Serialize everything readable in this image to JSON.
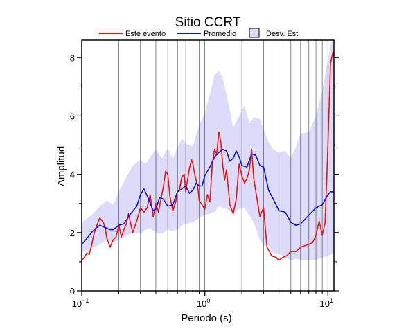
{
  "chart_data": {
    "type": "line",
    "title": "Sitio CCRT",
    "xlabel": "Periodo (s)",
    "ylabel": "Amplitud",
    "x_scale": "log",
    "xlim": [
      0.1,
      11.2
    ],
    "ylim": [
      0,
      8.6
    ],
    "grid": true,
    "legend_position": "top",
    "x_ticks": [
      {
        "value": 0.1,
        "base": "10",
        "exp": "−1"
      },
      {
        "value": 1,
        "base": "10",
        "exp": "0"
      },
      {
        "value": 10,
        "base": "10",
        "exp": "1"
      }
    ],
    "y_ticks": [
      {
        "value": 0,
        "label": "0"
      },
      {
        "value": 2,
        "label": "2"
      },
      {
        "value": 4,
        "label": "4"
      },
      {
        "value": 6,
        "label": "6"
      },
      {
        "value": 8,
        "label": "8"
      }
    ],
    "series": [
      {
        "name": "Este evento",
        "color": "#ee1111",
        "x": [
          0.1,
          0.105,
          0.11,
          0.115,
          0.12,
          0.125,
          0.13,
          0.14,
          0.15,
          0.155,
          0.16,
          0.17,
          0.18,
          0.19,
          0.2,
          0.21,
          0.22,
          0.23,
          0.24,
          0.25,
          0.26,
          0.28,
          0.3,
          0.32,
          0.34,
          0.36,
          0.38,
          0.4,
          0.42,
          0.44,
          0.46,
          0.48,
          0.5,
          0.52,
          0.55,
          0.58,
          0.6,
          0.62,
          0.65,
          0.68,
          0.7,
          0.72,
          0.75,
          0.78,
          0.8,
          0.82,
          0.85,
          0.88,
          0.9,
          0.95,
          1.0,
          1.05,
          1.1,
          1.15,
          1.2,
          1.25,
          1.3,
          1.35,
          1.4,
          1.45,
          1.5,
          1.6,
          1.7,
          1.8,
          1.9,
          2.0,
          2.1,
          2.2,
          2.3,
          2.4,
          2.5,
          2.6,
          2.8,
          3.0,
          3.2,
          3.5,
          3.8,
          4.0,
          4.3,
          4.6,
          5.0,
          5.5,
          6.0,
          6.5,
          7.0,
          7.5,
          8.0,
          8.5,
          9.0,
          9.5,
          10.0,
          10.5,
          11.0,
          11.2
        ],
        "y": [
          1.05,
          1.15,
          1.3,
          1.25,
          1.55,
          1.9,
          2.15,
          2.5,
          2.35,
          2.15,
          1.8,
          1.5,
          1.75,
          1.85,
          2.25,
          1.85,
          2.1,
          2.3,
          2.65,
          2.3,
          2.0,
          2.4,
          2.85,
          2.7,
          2.85,
          3.3,
          2.55,
          3.0,
          2.7,
          3.15,
          3.55,
          4.1,
          4.0,
          3.25,
          2.75,
          3.05,
          3.4,
          3.45,
          3.9,
          4.0,
          3.4,
          3.75,
          4.2,
          4.5,
          4.35,
          4.1,
          3.8,
          3.5,
          3.1,
          2.95,
          2.8,
          3.3,
          3.05,
          4.35,
          4.85,
          4.7,
          5.45,
          5.1,
          4.3,
          3.8,
          4.15,
          2.95,
          2.65,
          3.15,
          4.35,
          3.95,
          3.7,
          3.85,
          4.15,
          4.85,
          3.85,
          3.4,
          2.55,
          2.85,
          1.5,
          1.2,
          1.15,
          1.05,
          1.15,
          1.2,
          1.35,
          1.35,
          1.5,
          1.55,
          1.6,
          1.65,
          1.9,
          2.4,
          1.9,
          2.35,
          5.0,
          7.8,
          8.2,
          8.05
        ]
      },
      {
        "name": "Promedio",
        "color": "#1010dd",
        "x": [
          0.1,
          0.11,
          0.12,
          0.13,
          0.14,
          0.15,
          0.16,
          0.17,
          0.18,
          0.2,
          0.22,
          0.25,
          0.28,
          0.3,
          0.32,
          0.35,
          0.38,
          0.4,
          0.43,
          0.46,
          0.5,
          0.55,
          0.6,
          0.65,
          0.7,
          0.75,
          0.8,
          0.85,
          0.9,
          0.95,
          1.0,
          1.1,
          1.2,
          1.3,
          1.4,
          1.5,
          1.6,
          1.7,
          1.8,
          1.9,
          2.0,
          2.2,
          2.4,
          2.6,
          2.8,
          3.0,
          3.3,
          3.6,
          4.0,
          4.5,
          5.0,
          5.5,
          6.0,
          6.5,
          7.0,
          8.0,
          9.0,
          10.0,
          10.5,
          11.0,
          11.2
        ],
        "y": [
          1.6,
          1.8,
          2.0,
          2.15,
          2.25,
          2.2,
          2.15,
          2.1,
          2.1,
          2.25,
          2.3,
          2.65,
          2.9,
          3.3,
          3.5,
          3.15,
          2.75,
          2.8,
          3.2,
          3.15,
          2.9,
          2.95,
          3.4,
          3.5,
          3.6,
          3.35,
          3.45,
          3.7,
          3.6,
          3.6,
          3.95,
          4.25,
          4.6,
          4.75,
          4.85,
          4.8,
          4.45,
          4.55,
          4.8,
          4.6,
          4.3,
          4.25,
          4.7,
          4.65,
          4.3,
          4.25,
          3.45,
          3.15,
          2.75,
          2.7,
          2.35,
          2.25,
          2.3,
          2.45,
          2.6,
          2.85,
          2.95,
          3.3,
          3.4,
          3.4,
          3.4
        ]
      }
    ],
    "std_band": {
      "name": "Desv. Est.",
      "color": "#dcdcfa",
      "x": [
        0.1,
        0.12,
        0.14,
        0.16,
        0.18,
        0.2,
        0.23,
        0.26,
        0.3,
        0.33,
        0.36,
        0.4,
        0.45,
        0.5,
        0.55,
        0.6,
        0.65,
        0.7,
        0.8,
        0.9,
        1.0,
        1.1,
        1.2,
        1.3,
        1.4,
        1.5,
        1.7,
        1.9,
        2.1,
        2.3,
        2.5,
        2.8,
        3.0,
        3.3,
        3.6,
        4.0,
        4.5,
        5.0,
        5.5,
        6.0,
        7.0,
        8.0,
        9.0,
        10.0,
        10.5,
        11.0,
        11.2
      ],
      "upper": [
        2.35,
        2.6,
        2.9,
        3.1,
        2.95,
        3.4,
        3.9,
        4.3,
        4.5,
        4.35,
        4.6,
        4.85,
        4.55,
        4.9,
        4.55,
        4.9,
        5.25,
        5.05,
        4.95,
        5.7,
        6.1,
        6.75,
        7.4,
        7.55,
        7.3,
        6.75,
        5.6,
        6.0,
        6.35,
        5.75,
        5.95,
        5.9,
        5.55,
        5.1,
        4.85,
        4.75,
        4.8,
        4.55,
        4.95,
        5.4,
        5.45,
        6.0,
        6.85,
        7.9,
        8.45,
        8.6,
        8.6
      ],
      "lower": [
        1.3,
        1.45,
        1.6,
        1.75,
        1.65,
        1.75,
        1.85,
        2.0,
        1.95,
        2.1,
        2.15,
        2.0,
        1.95,
        2.1,
        2.05,
        2.1,
        2.25,
        2.3,
        2.35,
        2.5,
        2.6,
        2.65,
        2.7,
        2.9,
        2.85,
        2.85,
        2.65,
        2.8,
        2.85,
        2.6,
        2.35,
        1.75,
        1.55,
        1.55,
        1.3,
        1.25,
        1.15,
        1.05,
        1.1,
        1.05,
        1.05,
        1.05,
        1.15,
        1.2,
        1.25,
        1.3,
        1.3
      ]
    }
  }
}
